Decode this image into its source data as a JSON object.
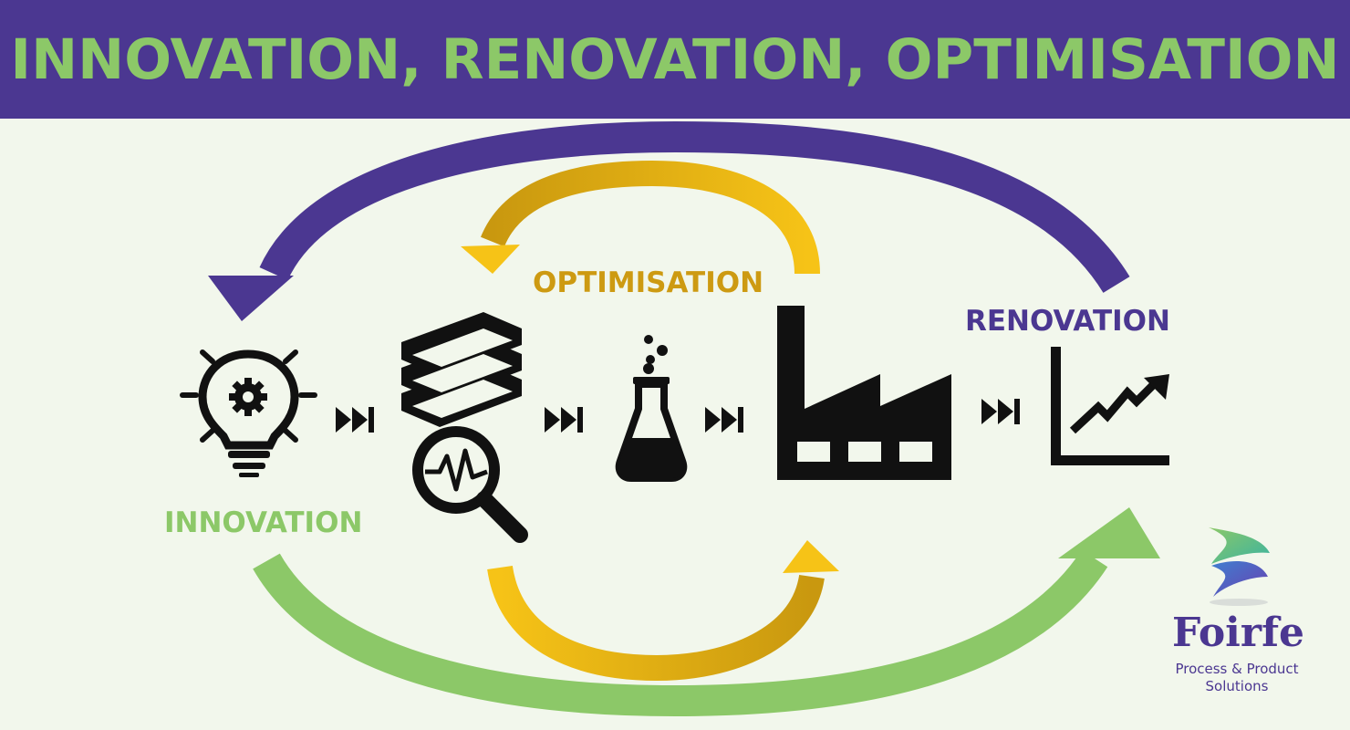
{
  "header": {
    "title": "INNOVATION, RENOVATION, OPTIMISATION"
  },
  "labels": {
    "optimisation": "OPTIMISATION",
    "renovation": "RENOVATION",
    "innovation": "INNOVATION"
  },
  "stages": [
    {
      "icon": "lightbulb-gear-icon"
    },
    {
      "icon": "books-magnifier-icon"
    },
    {
      "icon": "flask-icon"
    },
    {
      "icon": "factory-icon"
    },
    {
      "icon": "growth-chart-icon"
    }
  ],
  "connector_icon": "fast-forward-icon",
  "loops": [
    {
      "name": "renovation",
      "direction": "right-to-left",
      "color": "#4b3791"
    },
    {
      "name": "innovation",
      "direction": "left-to-right",
      "color": "#8cc868"
    },
    {
      "name": "optimisation",
      "direction": "clockwise",
      "color": "#f3b90e"
    }
  ],
  "logo": {
    "name": "Foirfe",
    "tagline_line1": "Process & Product",
    "tagline_line2": "Solutions"
  },
  "colors": {
    "purple": "#4b3791",
    "green": "#8cc868",
    "gold": "#f3b90e",
    "background": "#f2f7ec"
  }
}
